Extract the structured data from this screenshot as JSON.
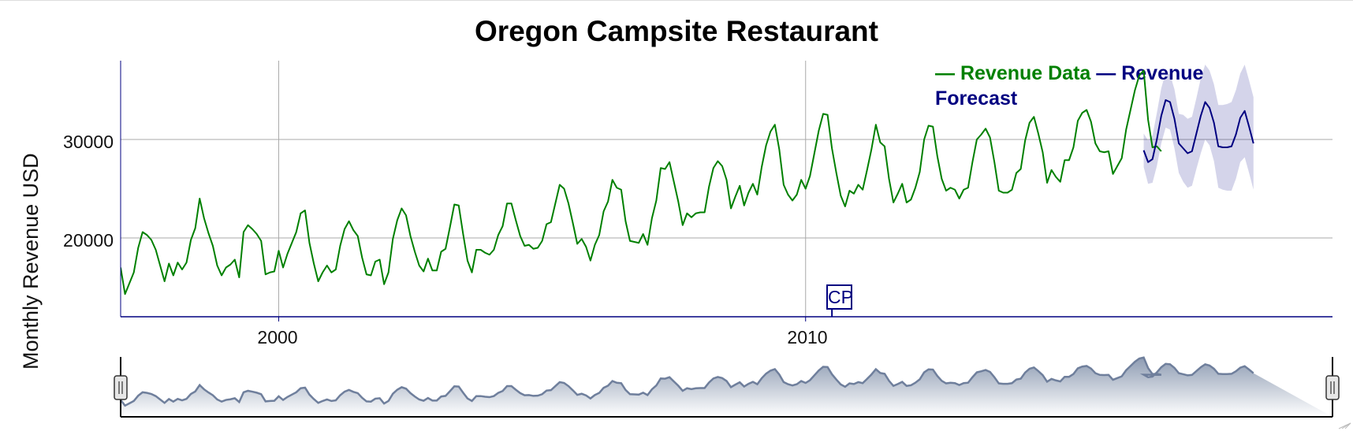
{
  "chart_data": {
    "type": "line",
    "title": "Oregon Campsite Restaurant",
    "xlabel": "",
    "ylabel": "Monthly Revenue USD",
    "x_range": [
      "1997-01",
      "2020-01"
    ],
    "ylim": [
      12000,
      38000
    ],
    "x_ticks": [
      "2000",
      "2010"
    ],
    "y_ticks": [
      "20000",
      "30000"
    ],
    "grid": true,
    "legend_position": "top-right",
    "legend": [
      "Revenue Data",
      "Revenue Forecast"
    ],
    "annotations": [
      {
        "label": "CP",
        "x": "2010-07"
      }
    ],
    "series": [
      {
        "name": "Revenue Data",
        "color": "#008000",
        "start": "1997-01",
        "values": [
          17000,
          14300,
          15400,
          16500,
          19000,
          20600,
          20300,
          19800,
          18800,
          17200,
          15600,
          17400,
          16200,
          17500,
          16800,
          17500,
          19800,
          21000,
          24000,
          22000,
          20500,
          19200,
          17200,
          16200,
          17000,
          17300,
          17800,
          16000,
          20600,
          21300,
          20900,
          20400,
          19700,
          16300,
          16500,
          16600,
          18700,
          17000,
          18400,
          19500,
          20600,
          22500,
          22800,
          19500,
          17400,
          15600,
          16500,
          17200,
          16500,
          16800,
          19200,
          20900,
          21700,
          20800,
          20200,
          18000,
          16300,
          16200,
          17600,
          17800,
          15300,
          16500,
          19900,
          21800,
          23000,
          22300,
          20200,
          18600,
          17200,
          16600,
          17900,
          16700,
          16700,
          18600,
          18900,
          21100,
          23400,
          23300,
          20400,
          17700,
          16500,
          18800,
          18800,
          18500,
          18300,
          18800,
          20300,
          21200,
          23500,
          23500,
          21800,
          20200,
          19200,
          19300,
          18900,
          19000,
          19700,
          21400,
          21600,
          23500,
          25400,
          25000,
          23500,
          21500,
          19400,
          19900,
          19100,
          17700,
          19300,
          20300,
          22700,
          23700,
          25900,
          25100,
          24900,
          21700,
          19700,
          19600,
          19500,
          20400,
          19300,
          22000,
          23800,
          27100,
          27000,
          27700,
          25700,
          23700,
          21300,
          22500,
          22100,
          22500,
          22600,
          22600,
          25200,
          27100,
          27800,
          27300,
          25900,
          23000,
          24200,
          25300,
          23300,
          24600,
          25500,
          24400,
          27200,
          29400,
          30800,
          31500,
          29000,
          25400,
          24400,
          23800,
          24400,
          25900,
          25000,
          26300,
          28600,
          30900,
          32600,
          32500,
          29100,
          26600,
          24300,
          23200,
          24800,
          24500,
          25400,
          24900,
          26900,
          29000,
          31500,
          29700,
          29300,
          26000,
          23600,
          24500,
          25500,
          23600,
          23900,
          25100,
          26700,
          30000,
          31400,
          31300,
          28300,
          26000,
          24800,
          25100,
          24900,
          24000,
          24900,
          25100,
          27700,
          30000,
          30500,
          31100,
          30200,
          27700,
          24800,
          24600,
          24600,
          24900,
          26600,
          27000,
          29900,
          31700,
          32300,
          30600,
          28700,
          25600,
          26900,
          26200,
          25700,
          27900,
          27900,
          29200,
          31900,
          32700,
          33000,
          31800,
          29600,
          28800,
          28700,
          28800,
          26500,
          27300,
          28100,
          31000,
          33000,
          35000,
          36500,
          37000,
          32000,
          29200,
          29300,
          28800
        ]
      },
      {
        "name": "Revenue Forecast",
        "color": "#000080",
        "start": "2016-06",
        "values": [
          28900,
          27700,
          28000,
          30000,
          32400,
          34000,
          33800,
          32100,
          29600,
          29100,
          28600,
          28800,
          30600,
          32400,
          33800,
          33200,
          31700,
          29300,
          29200,
          29200,
          29300,
          30500,
          32200,
          32900,
          31300,
          29600
        ],
        "lower": [
          27200,
          25500,
          25600,
          27300,
          29600,
          31200,
          31000,
          29100,
          26600,
          25700,
          25100,
          25300,
          27000,
          28600,
          30000,
          29400,
          27800,
          25100,
          24900,
          24800,
          24800,
          26000,
          27700,
          28200,
          26600,
          24900
        ],
        "upper": [
          30600,
          29900,
          30400,
          32700,
          35200,
          36800,
          36600,
          35100,
          32600,
          32500,
          32100,
          32300,
          34200,
          36200,
          37600,
          37000,
          35600,
          33500,
          33500,
          33600,
          33800,
          35000,
          36700,
          37600,
          36000,
          34300
        ]
      }
    ]
  }
}
